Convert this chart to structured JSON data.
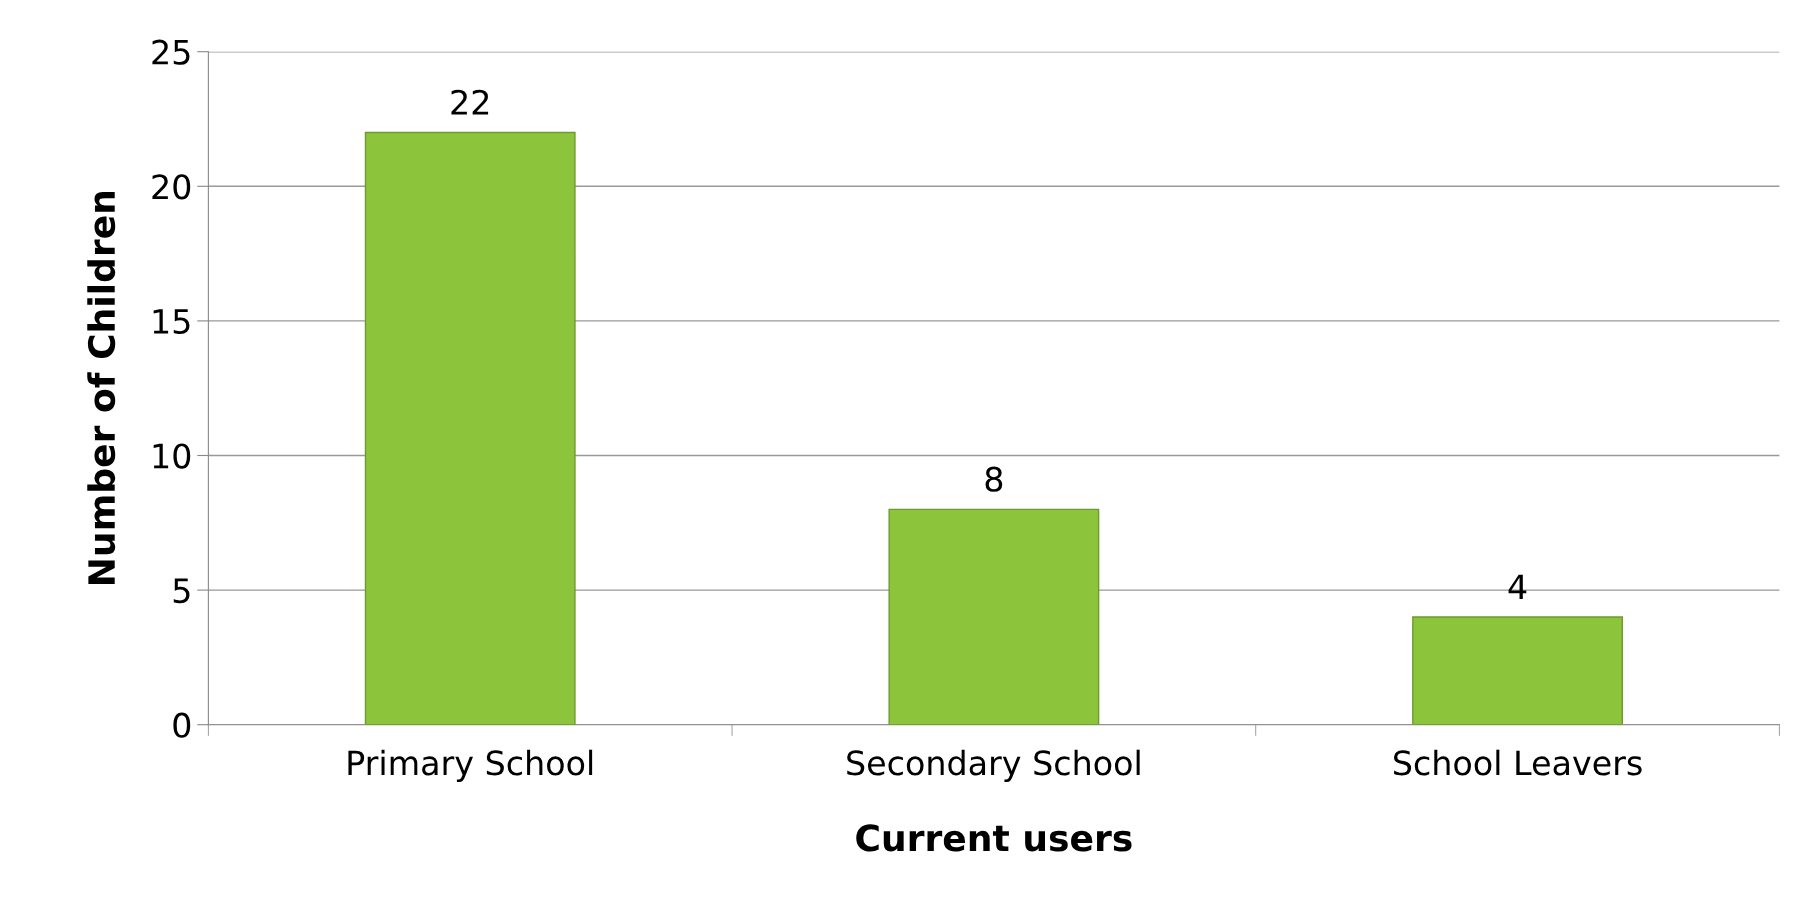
{
  "chart_data": {
    "type": "bar",
    "xlabel": "Current users",
    "ylabel": "Number of Children",
    "categories": [
      "Primary School",
      "Secondary School",
      "School Leavers"
    ],
    "values": [
      22,
      8,
      4
    ],
    "color": "#8cc43c",
    "ylim": [
      0,
      25
    ],
    "yticks": [
      0,
      5,
      10,
      15,
      20,
      25
    ],
    "grid": "y",
    "data_labels": true
  }
}
